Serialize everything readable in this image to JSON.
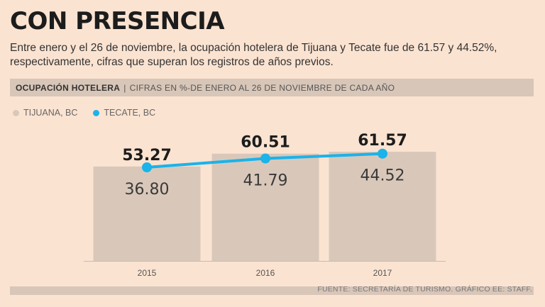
{
  "title": "CON PRESENCIA",
  "subtitle": "Entre enero y el 26 de noviembre, la ocupación hotelera de Tijuana y Tecate fue de 61.57 y 44.52%, respectivamente, cifras que superan los registros de años previos.",
  "band": {
    "label": "OCUPACIÓN HOTELERA",
    "separator": "|",
    "description": "CIFRAS EN %-DE ENERO AL 26 DE NOVIEMBRE DE CADA AÑO"
  },
  "legend": [
    {
      "name": "TIJUANA, BC",
      "color": "#d9c8ba"
    },
    {
      "name": "TECATE, BC",
      "color": "#1ab3ea"
    }
  ],
  "chart_data": {
    "type": "bar",
    "categories": [
      "2015",
      "2016",
      "2017"
    ],
    "series": [
      {
        "name": "TIJUANA, BC",
        "type": "bar",
        "values": [
          53.27,
          60.51,
          61.57
        ],
        "labels": [
          "53.27",
          "60.51",
          "61.57"
        ],
        "color": "#d9c8ba"
      },
      {
        "name": "TECATE, BC",
        "type": "line",
        "values": [
          36.8,
          41.79,
          44.52
        ],
        "labels": [
          "36.80",
          "41.79",
          "44.52"
        ],
        "color": "#1ab3ea"
      }
    ],
    "title": "OCUPACIÓN HOTELERA",
    "ylabel": "CIFRAS EN %",
    "xlabel": ""
  },
  "source": "FUENTE: SECRETARÍA DE TURISMO.  GRÁFICO EE: STAFF."
}
